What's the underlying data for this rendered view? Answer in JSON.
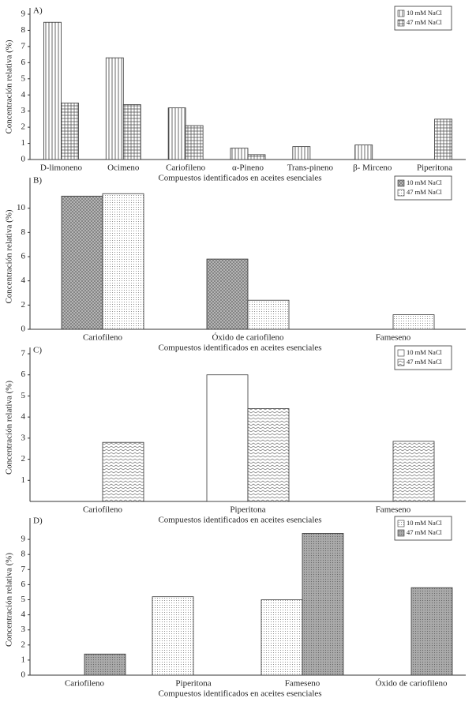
{
  "chart_data": [
    {
      "type": "bar",
      "label": "A)",
      "y_label": "Concentración relativa (%)",
      "x_label": "Compuestos identificados en aceites esenciales",
      "categories": [
        "D-limoneno",
        "Ocimeno",
        "Cariofileno",
        "α-Pineno",
        "Trans-pineno",
        "β- Mirceno",
        "Piperitona"
      ],
      "series": [
        {
          "name": "10 mM NaCl",
          "pattern": "vertical-lines",
          "values": [
            8.5,
            6.3,
            3.2,
            0.7,
            0.8,
            0.9,
            null
          ]
        },
        {
          "name": "47 mM NaCl",
          "pattern": "grid",
          "values": [
            3.5,
            3.4,
            2.1,
            0.3,
            null,
            null,
            2.5
          ]
        }
      ],
      "ylim": [
        0,
        9
      ],
      "yticks": [
        0,
        1,
        2,
        3,
        4,
        5,
        6,
        7,
        8,
        9
      ]
    },
    {
      "type": "bar",
      "label": "B)",
      "y_label": "Concentración relativa (%)",
      "x_label": "Compuestos identificados en aceites esenciales",
      "categories": [
        "Cariofileno",
        "Óxido de cariofileno",
        "Fameseno"
      ],
      "series": [
        {
          "name": "10 mM NaCl",
          "pattern": "crosshatch-gray",
          "values": [
            11.0,
            5.8,
            null
          ]
        },
        {
          "name": "47 mM NaCl",
          "pattern": "dots-light",
          "values": [
            11.2,
            2.4,
            1.2
          ]
        }
      ],
      "ylim": [
        0,
        12
      ],
      "yticks": [
        0,
        2,
        4,
        6,
        8,
        10
      ]
    },
    {
      "type": "bar",
      "label": "C)",
      "y_label": "Concentración relativa (%)",
      "x_label": "Compuestos identificados en aceites esenciales",
      "categories": [
        "Cariofileno",
        "Piperitona",
        "Fameseno"
      ],
      "series": [
        {
          "name": "10 mM NaCl",
          "pattern": "white",
          "values": [
            null,
            6.0,
            null
          ]
        },
        {
          "name": "47 mM NaCl",
          "pattern": "zigzag",
          "values": [
            2.8,
            4.4,
            2.85
          ]
        }
      ],
      "ylim": [
        0,
        7
      ],
      "yticks": [
        1,
        2,
        3,
        4,
        5,
        6,
        7
      ]
    },
    {
      "type": "bar",
      "label": "D)",
      "y_label": "Concentración relativa (%)",
      "x_label": "Compuestos identificados en aceites esenciales",
      "categories": [
        "Cariofileno",
        "Piperitona",
        "Fameseno",
        "Óxido de cariofileno"
      ],
      "series": [
        {
          "name": "10 mM NaCl",
          "pattern": "dots-light",
          "values": [
            null,
            5.2,
            5.0,
            null
          ]
        },
        {
          "name": "47 mM NaCl",
          "pattern": "dots-gray",
          "values": [
            1.4,
            null,
            9.4,
            5.8
          ]
        }
      ],
      "ylim": [
        0,
        10
      ],
      "yticks": [
        0,
        1,
        2,
        3,
        4,
        5,
        6,
        7,
        8,
        9
      ]
    }
  ]
}
